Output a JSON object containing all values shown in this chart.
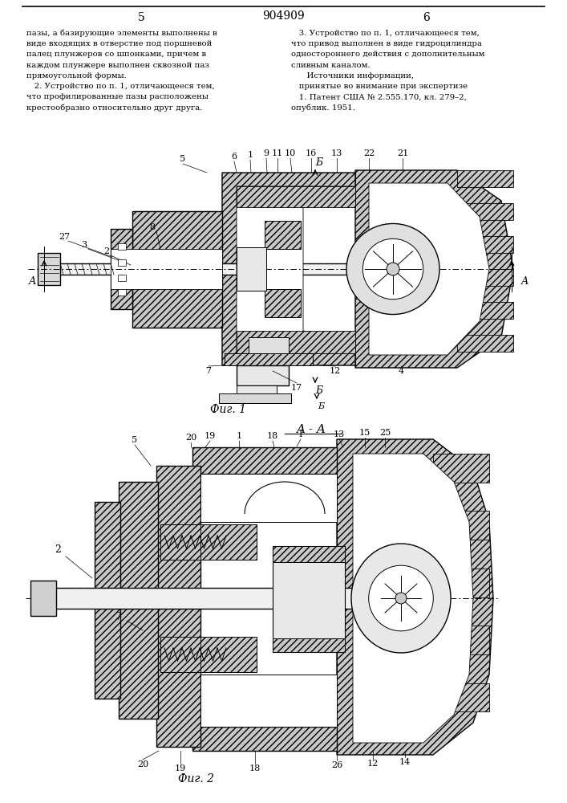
{
  "page_title": "904909",
  "page_num_left": "5",
  "page_num_right": "6",
  "left_col": [
    "пазы, а базирующие элементы выполнены в",
    "виде входящих в отверстие под поршневой",
    "палец плунжеров со шпонками, причем в",
    "каждом плунжере выполнен сквозной паз",
    "прямоугольной формы.",
    "   2. Устройство по п. 1, отличающееся тем,",
    "что профилированные пазы расположены",
    "крестообразно относительно друг друга."
  ],
  "right_col": [
    "   3. Устройство по п. 1, отличающееся тем,",
    "что привод выполнен в виде гидроцилиндра",
    "одностороннего действия с дополнительным",
    "сливным каналом.",
    "      Источники информации,",
    "   принятые во внимание при экспертизе",
    "   1. Патент США № 2.555.170, кл. 279–2,",
    "опублик. 1951."
  ],
  "fig1_caption": "Фиг. 1",
  "fig2_caption": "Фиг. 2",
  "fig2_title": "A - A",
  "bg_color": "#ffffff"
}
